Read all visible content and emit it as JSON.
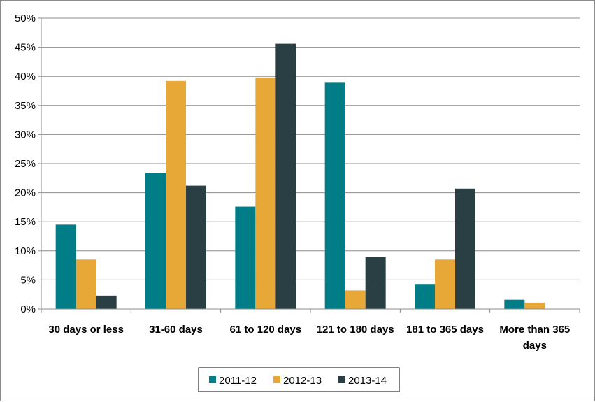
{
  "chart_data": {
    "type": "bar",
    "categories": [
      [
        "30 days or less"
      ],
      [
        "31-60 days"
      ],
      [
        "61 to 120 days"
      ],
      [
        "121 to 180 days"
      ],
      [
        "181 to 365 days"
      ],
      [
        "More than 365",
        "days"
      ]
    ],
    "series": [
      {
        "name": "2011-12",
        "color": "#007D87",
        "values": [
          14.5,
          23.4,
          17.6,
          38.9,
          4.3,
          1.6
        ]
      },
      {
        "name": "2012-13",
        "color": "#E8A838",
        "values": [
          8.5,
          39.2,
          39.8,
          3.2,
          8.5,
          1.1
        ]
      },
      {
        "name": "2013-14",
        "color": "#2A3F44",
        "values": [
          2.3,
          21.2,
          45.6,
          8.9,
          20.7,
          0
        ]
      }
    ],
    "ylim": [
      0,
      50
    ],
    "yticks": [
      "0%",
      "5%",
      "10%",
      "15%",
      "20%",
      "25%",
      "30%",
      "35%",
      "40%",
      "45%",
      "50%"
    ],
    "grid": true,
    "legend_position": "bottom"
  }
}
